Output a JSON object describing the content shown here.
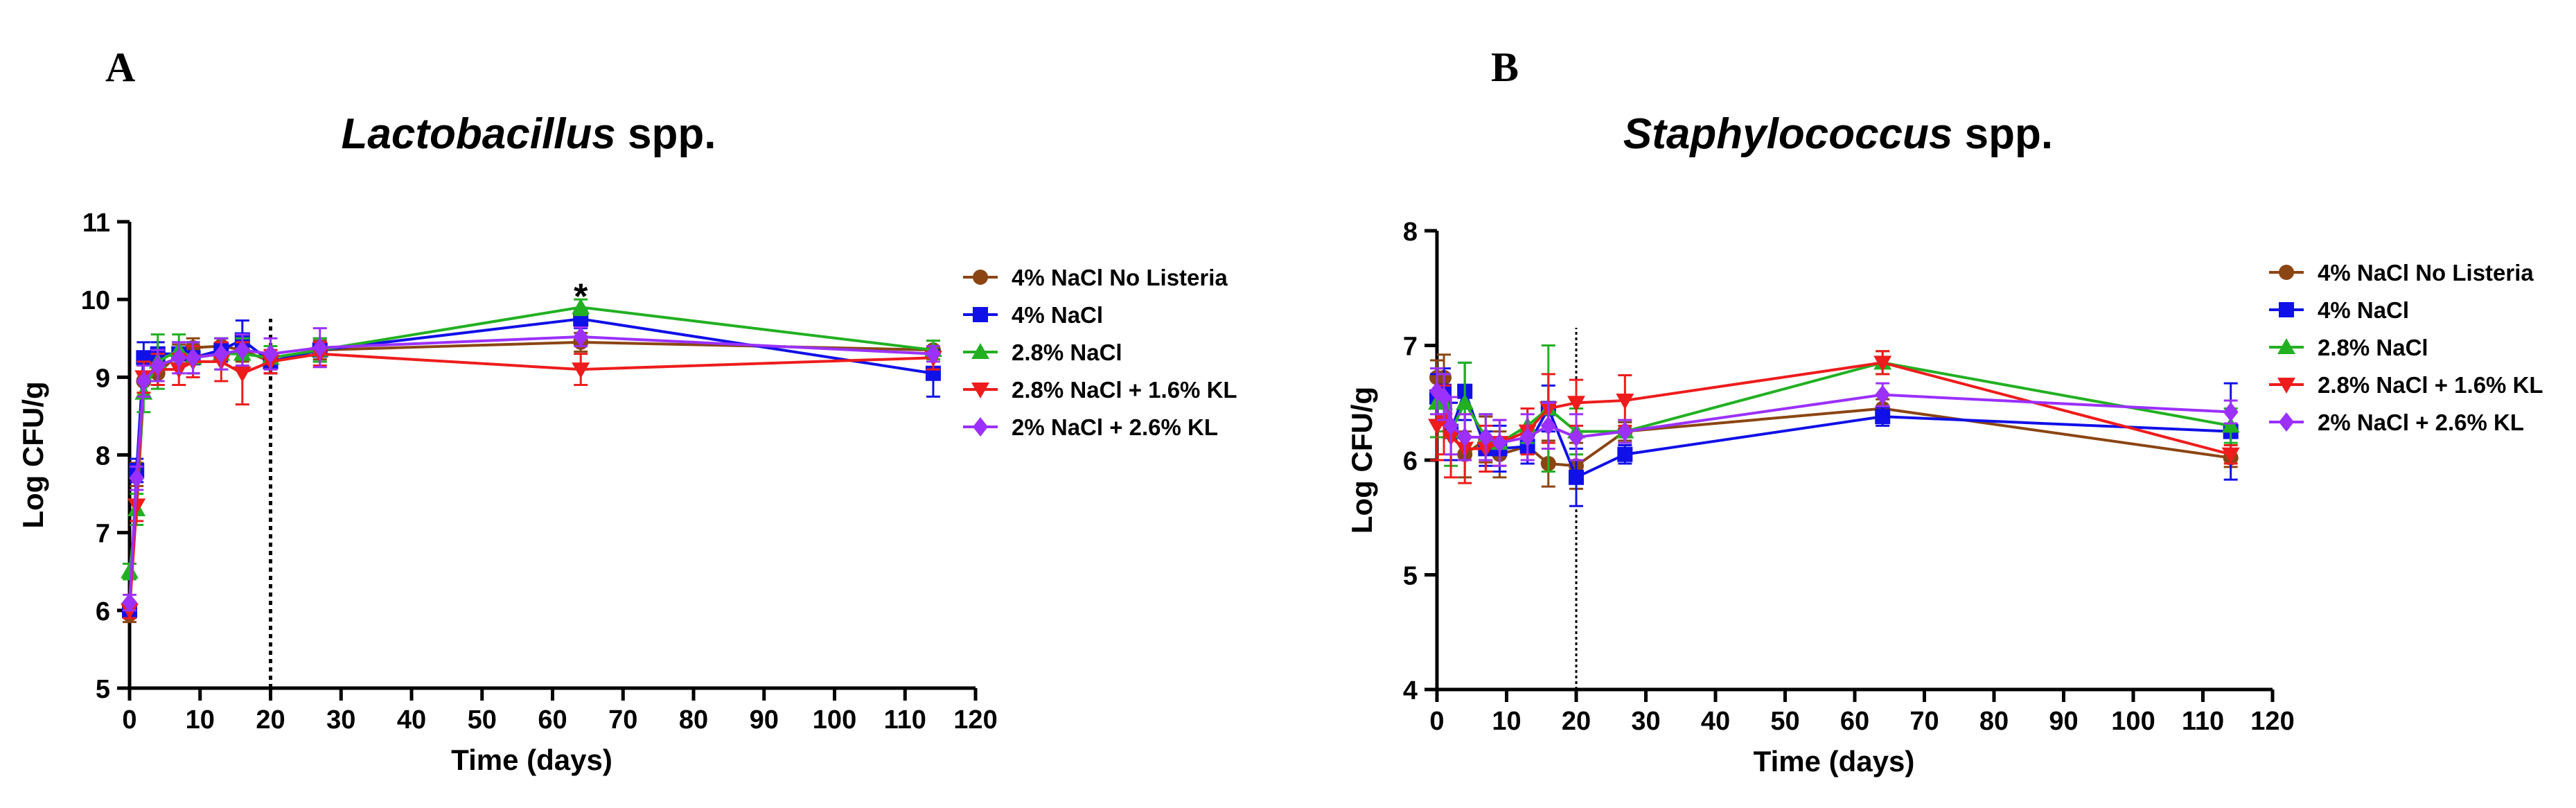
{
  "chart_data": [
    {
      "type": "line",
      "panel_label": "A",
      "title_italic": "Lactobacillus",
      "title_rest": " spp.",
      "xlabel": "Time (days)",
      "ylabel": "Log CFU/g",
      "xlim": [
        0,
        120
      ],
      "ylim": [
        5,
        11
      ],
      "xticks": [
        0,
        10,
        20,
        30,
        40,
        50,
        60,
        70,
        80,
        90,
        100,
        110,
        120
      ],
      "yticks": [
        5,
        6,
        7,
        8,
        9,
        10,
        11
      ],
      "vline_x": 20,
      "vline_style": "dotted",
      "annotations": [
        {
          "text": "*",
          "x": 64,
          "y": 10.15
        }
      ],
      "legend_position": "right",
      "series": [
        {
          "name": "4% NaCl No Listeria",
          "color": "#8B4513",
          "marker": "circle",
          "x": [
            0,
            1,
            2,
            4,
            7,
            9,
            13,
            16,
            20,
            27,
            64,
            114
          ],
          "y": [
            5.95,
            7.75,
            8.95,
            9.05,
            9.3,
            9.38,
            9.4,
            9.35,
            9.2,
            9.35,
            9.45,
            9.35
          ],
          "err": [
            0.1,
            0.15,
            0.2,
            0.15,
            0.12,
            0.12,
            0.1,
            0.15,
            0.15,
            0.12,
            0.12,
            0.12
          ]
        },
        {
          "name": "4% NaCl",
          "color": "#1010E8",
          "marker": "square",
          "x": [
            0,
            1,
            2,
            4,
            7,
            9,
            13,
            16,
            20,
            27,
            64,
            114
          ],
          "y": [
            6.0,
            7.8,
            9.25,
            9.3,
            9.3,
            9.25,
            9.35,
            9.48,
            9.2,
            9.35,
            9.75,
            9.05
          ],
          "err": [
            0.1,
            0.15,
            0.2,
            0.15,
            0.15,
            0.2,
            0.15,
            0.25,
            0.15,
            0.15,
            0.12,
            0.3
          ]
        },
        {
          "name": "2.8% NaCl",
          "color": "#22B022",
          "marker": "triangle",
          "x": [
            0,
            1,
            2,
            4,
            7,
            9,
            13,
            16,
            20,
            27,
            64,
            114
          ],
          "y": [
            6.5,
            7.3,
            8.8,
            9.2,
            9.35,
            9.25,
            9.3,
            9.3,
            9.25,
            9.35,
            9.9,
            9.35
          ],
          "err": [
            0.1,
            0.2,
            0.25,
            0.35,
            0.2,
            0.2,
            0.2,
            0.2,
            0.15,
            0.15,
            0.1,
            0.12
          ]
        },
        {
          "name": "2.8% NaCl + 1.6% KL",
          "color": "#EE1C1C",
          "marker": "triangle-down",
          "x": [
            0,
            1,
            2,
            4,
            7,
            9,
            13,
            16,
            20,
            27,
            64,
            114
          ],
          "y": [
            6.0,
            7.35,
            9.0,
            9.1,
            9.1,
            9.2,
            9.2,
            9.05,
            9.2,
            9.3,
            9.1,
            9.25
          ],
          "err": [
            0.1,
            0.2,
            0.2,
            0.2,
            0.2,
            0.2,
            0.25,
            0.4,
            0.15,
            0.15,
            0.2,
            0.15
          ]
        },
        {
          "name": "2% NaCl + 2.6% KL",
          "color": "#9B30FF",
          "marker": "diamond",
          "x": [
            0,
            1,
            2,
            4,
            7,
            9,
            13,
            16,
            20,
            27,
            64,
            114
          ],
          "y": [
            6.1,
            7.7,
            8.95,
            9.15,
            9.25,
            9.25,
            9.3,
            9.35,
            9.3,
            9.38,
            9.52,
            9.3
          ],
          "err": [
            0.1,
            0.15,
            0.2,
            0.2,
            0.2,
            0.2,
            0.2,
            0.2,
            0.2,
            0.25,
            0.12,
            0.1
          ]
        }
      ]
    },
    {
      "type": "line",
      "panel_label": "B",
      "title_italic": "Staphylococcus",
      "title_rest": " spp.",
      "xlabel": "Time (days)",
      "ylabel": "Log CFU/g",
      "xlim": [
        0,
        120
      ],
      "ylim": [
        4,
        8
      ],
      "xticks": [
        0,
        10,
        20,
        30,
        40,
        50,
        60,
        70,
        80,
        90,
        100,
        110,
        120
      ],
      "yticks": [
        4,
        5,
        6,
        7,
        8
      ],
      "vline_x": 20,
      "vline_style": "dotted",
      "annotations": [],
      "legend_position": "right",
      "series": [
        {
          "name": "4% NaCl No Listeria",
          "color": "#8B4513",
          "marker": "circle",
          "x": [
            0,
            1,
            2,
            4,
            7,
            9,
            13,
            16,
            20,
            27,
            64,
            114
          ],
          "y": [
            6.72,
            6.72,
            6.25,
            6.05,
            6.18,
            6.05,
            6.12,
            5.97,
            5.95,
            6.25,
            6.45,
            6.02
          ],
          "err": [
            0.15,
            0.2,
            0.25,
            0.2,
            0.2,
            0.2,
            0.15,
            0.2,
            0.2,
            0.08,
            0.08,
            0.08
          ]
        },
        {
          "name": "4% NaCl",
          "color": "#1010E8",
          "marker": "square",
          "x": [
            0,
            1,
            2,
            4,
            7,
            9,
            13,
            16,
            20,
            27,
            64,
            114
          ],
          "y": [
            6.55,
            6.6,
            6.25,
            6.6,
            6.1,
            6.1,
            6.12,
            6.45,
            5.85,
            6.05,
            6.38,
            6.25
          ],
          "err": [
            0.2,
            0.2,
            0.25,
            0.25,
            0.15,
            0.2,
            0.15,
            0.2,
            0.25,
            0.08,
            0.08,
            0.42
          ]
        },
        {
          "name": "2.8% NaCl",
          "color": "#22B022",
          "marker": "triangle",
          "x": [
            0,
            1,
            2,
            4,
            7,
            9,
            13,
            16,
            20,
            27,
            64,
            114
          ],
          "y": [
            6.5,
            6.5,
            6.25,
            6.5,
            6.2,
            6.15,
            6.3,
            6.45,
            6.25,
            6.25,
            6.85,
            6.3
          ],
          "err": [
            0.3,
            0.25,
            0.3,
            0.35,
            0.2,
            0.2,
            0.15,
            0.55,
            0.2,
            0.1,
            0.1,
            0.15
          ]
        },
        {
          "name": "2.8% NaCl + 1.6% KL",
          "color": "#EE1C1C",
          "marker": "triangle-down",
          "x": [
            0,
            1,
            2,
            4,
            7,
            9,
            13,
            16,
            20,
            27,
            64,
            114
          ],
          "y": [
            6.3,
            6.35,
            6.2,
            6.1,
            6.1,
            6.15,
            6.25,
            6.45,
            6.5,
            6.52,
            6.85,
            6.05
          ],
          "err": [
            0.3,
            0.3,
            0.35,
            0.3,
            0.2,
            0.2,
            0.2,
            0.3,
            0.2,
            0.22,
            0.1,
            0.08
          ]
        },
        {
          "name": "2% NaCl + 2.6% KL",
          "color": "#9B30FF",
          "marker": "diamond",
          "x": [
            0,
            1,
            2,
            4,
            7,
            9,
            13,
            16,
            20,
            27,
            64,
            114
          ],
          "y": [
            6.6,
            6.55,
            6.3,
            6.2,
            6.2,
            6.15,
            6.2,
            6.3,
            6.2,
            6.25,
            6.57,
            6.42
          ],
          "err": [
            0.2,
            0.2,
            0.25,
            0.2,
            0.2,
            0.2,
            0.2,
            0.2,
            0.2,
            0.1,
            0.1,
            0.1
          ]
        }
      ]
    }
  ]
}
